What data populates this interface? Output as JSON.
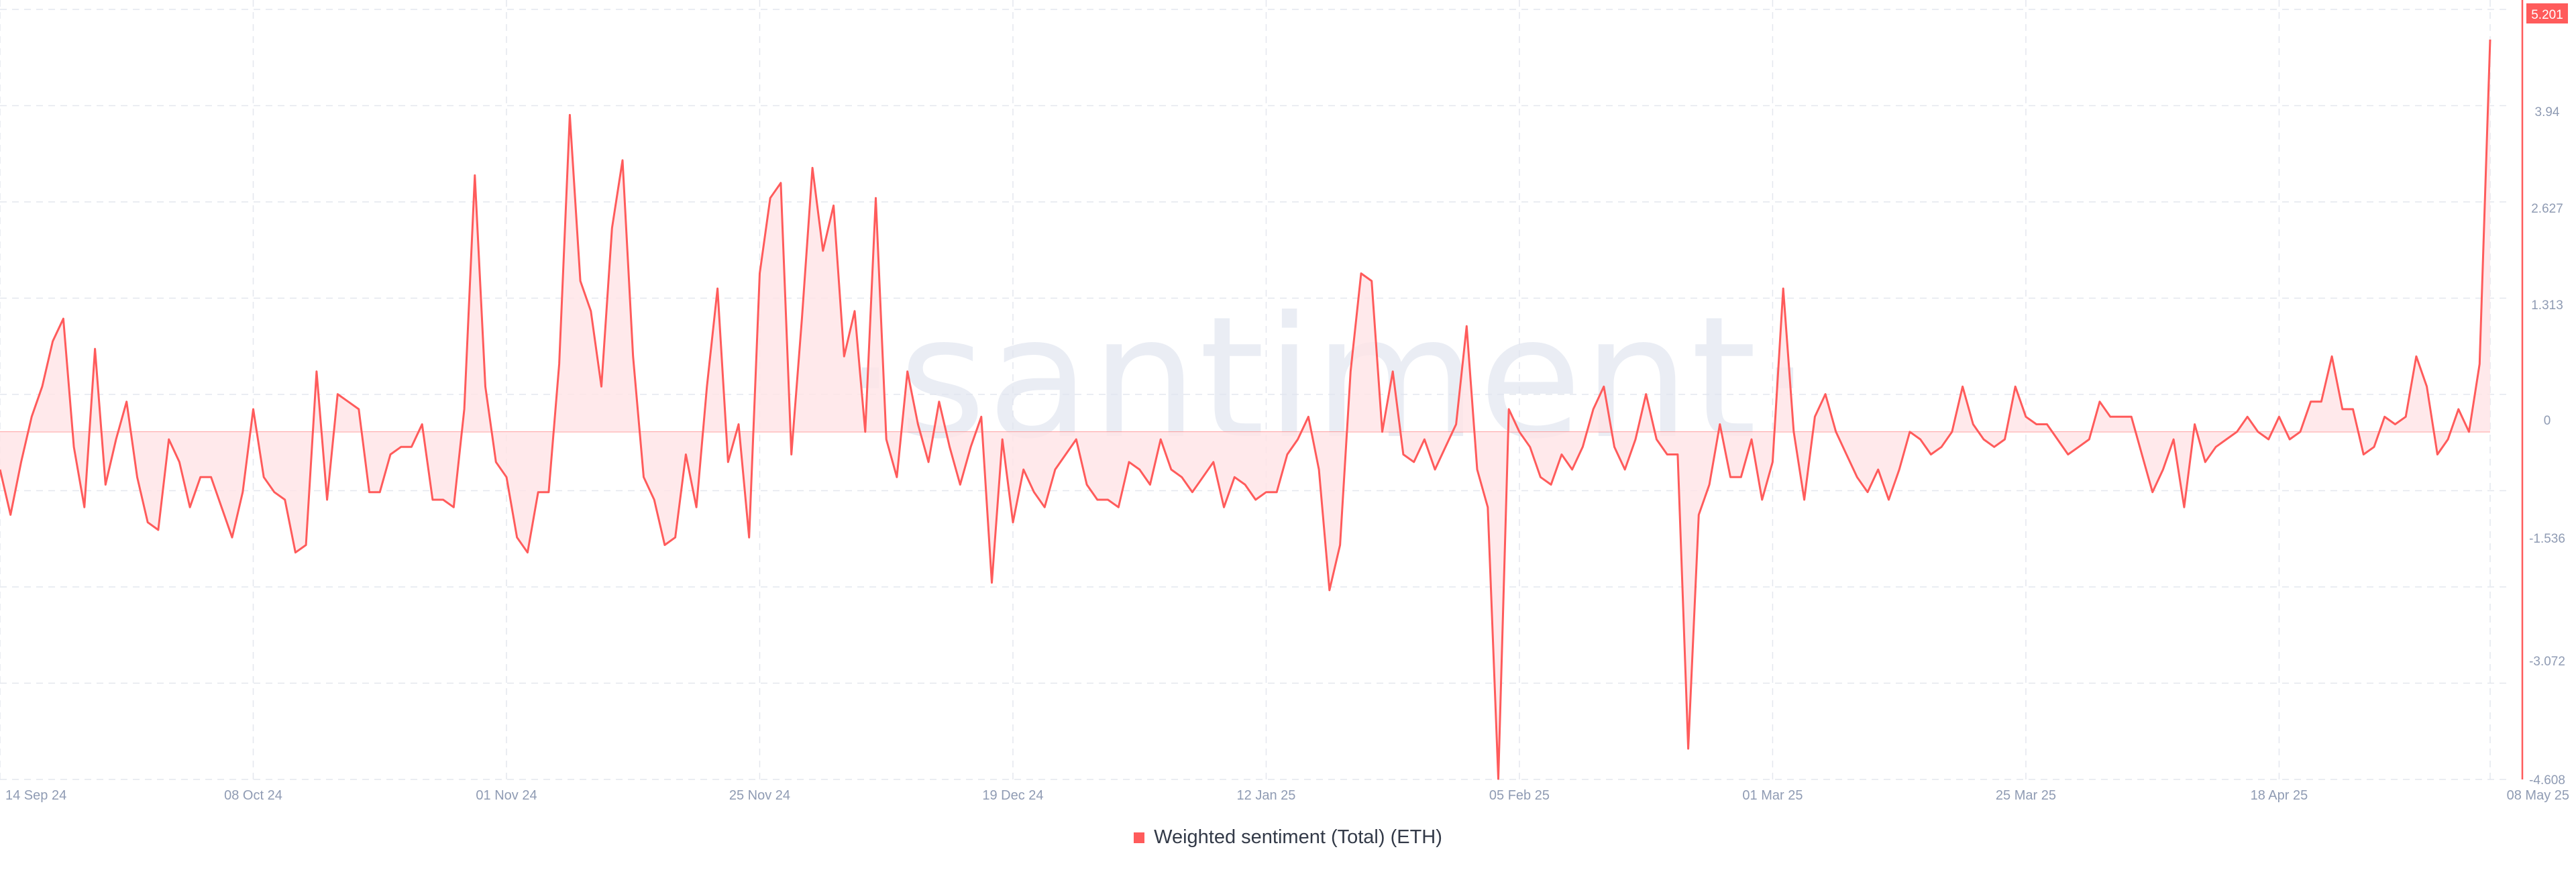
{
  "watermark": "·santiment·",
  "chart_data": {
    "type": "area",
    "title": "",
    "xlabel": "",
    "ylabel": "",
    "legend": "bottom-center",
    "grid": true,
    "color": "#ff5b5b",
    "fill_color": "#ffe4e6",
    "ylim": [
      -4.608,
      5.6
    ],
    "y_ticks": [
      "5.201",
      "3.94",
      "2.627",
      "1.313",
      "0",
      "-1.536",
      "-3.072",
      "-4.608"
    ],
    "y_tick_values": [
      5.201,
      3.94,
      2.627,
      1.313,
      0,
      -1.536,
      -3.072,
      -4.608
    ],
    "x_ticks": [
      "14 Sep 24",
      "08 Oct 24",
      "01 Nov 24",
      "25 Nov 24",
      "19 Dec 24",
      "12 Jan 25",
      "05 Feb 25",
      "01 Mar 25",
      "25 Mar 25",
      "18 Apr 25",
      "08 May 25"
    ],
    "x_tick_days": [
      0,
      24,
      48,
      72,
      96,
      120,
      144,
      168,
      192,
      216,
      236
    ],
    "current_value": "5.201",
    "series": [
      {
        "name": "Weighted sentiment (Total) (ETH)",
        "values": [
          -0.5,
          -1.1,
          -0.4,
          0.2,
          0.6,
          1.2,
          1.5,
          -0.2,
          -1.0,
          1.1,
          -0.7,
          -0.1,
          0.4,
          -0.6,
          -1.2,
          -1.3,
          -0.1,
          -0.4,
          -1.0,
          -0.6,
          -0.6,
          -1.0,
          -1.4,
          -0.8,
          0.3,
          -0.6,
          -0.8,
          -0.9,
          -1.6,
          -1.5,
          0.8,
          -0.9,
          0.5,
          0.4,
          0.3,
          -0.8,
          -0.8,
          -0.3,
          -0.2,
          -0.2,
          0.1,
          -0.9,
          -0.9,
          -1.0,
          0.3,
          3.4,
          0.6,
          -0.4,
          -0.6,
          -1.4,
          -1.6,
          -0.8,
          -0.8,
          0.9,
          4.2,
          2.0,
          1.6,
          0.6,
          2.7,
          3.6,
          1.0,
          -0.6,
          -0.9,
          -1.5,
          -1.4,
          -0.3,
          -1.0,
          0.6,
          1.9,
          -0.4,
          0.1,
          -1.4,
          2.1,
          3.1,
          3.3,
          -0.3,
          1.5,
          3.5,
          2.4,
          3.0,
          1.0,
          1.6,
          0.0,
          3.1,
          -0.1,
          -0.6,
          0.8,
          0.1,
          -0.4,
          0.4,
          -0.2,
          -0.7,
          -0.2,
          0.2,
          -2.0,
          -0.1,
          -1.2,
          -0.5,
          -0.8,
          -1.0,
          -0.5,
          -0.3,
          -0.1,
          -0.7,
          -0.9,
          -0.9,
          -1.0,
          -0.4,
          -0.5,
          -0.7,
          -0.1,
          -0.5,
          -0.6,
          -0.8,
          -0.6,
          -0.4,
          -1.0,
          -0.6,
          -0.7,
          -0.9,
          -0.8,
          -0.8,
          -0.3,
          -0.1,
          0.2,
          -0.5,
          -2.1,
          -1.5,
          0.8,
          2.1,
          2.0,
          0.0,
          0.8,
          -0.3,
          -0.4,
          -0.1,
          -0.5,
          -0.2,
          0.1,
          1.4,
          -0.5,
          -1.0,
          -4.6,
          0.3,
          0.0,
          -0.2,
          -0.6,
          -0.7,
          -0.3,
          -0.5,
          -0.2,
          0.3,
          0.6,
          -0.2,
          -0.5,
          -0.1,
          0.5,
          -0.1,
          -0.3,
          -0.3,
          -4.2,
          -1.1,
          -0.7,
          0.1,
          -0.6,
          -0.6,
          -0.1,
          -0.9,
          -0.4,
          1.9,
          0.0,
          -0.9,
          0.2,
          0.5,
          0.0,
          -0.3,
          -0.6,
          -0.8,
          -0.5,
          -0.9,
          -0.5,
          0.0,
          -0.1,
          -0.3,
          -0.2,
          0.0,
          0.6,
          0.1,
          -0.1,
          -0.2,
          -0.1,
          0.6,
          0.2,
          0.1,
          0.1,
          -0.1,
          -0.3,
          -0.2,
          -0.1,
          0.4,
          0.2,
          0.2,
          0.2,
          -0.3,
          -0.8,
          -0.5,
          -0.1,
          -1.0,
          0.1,
          -0.4,
          -0.2,
          -0.1,
          0.0,
          0.2,
          0.0,
          -0.1,
          0.2,
          -0.1,
          0.0,
          0.4,
          0.4,
          1.0,
          0.3,
          0.3,
          -0.3,
          -0.2,
          0.2,
          0.1,
          0.2,
          1.0,
          0.6,
          -0.3,
          -0.1,
          0.3,
          0.0,
          0.9,
          5.2
        ]
      }
    ]
  }
}
